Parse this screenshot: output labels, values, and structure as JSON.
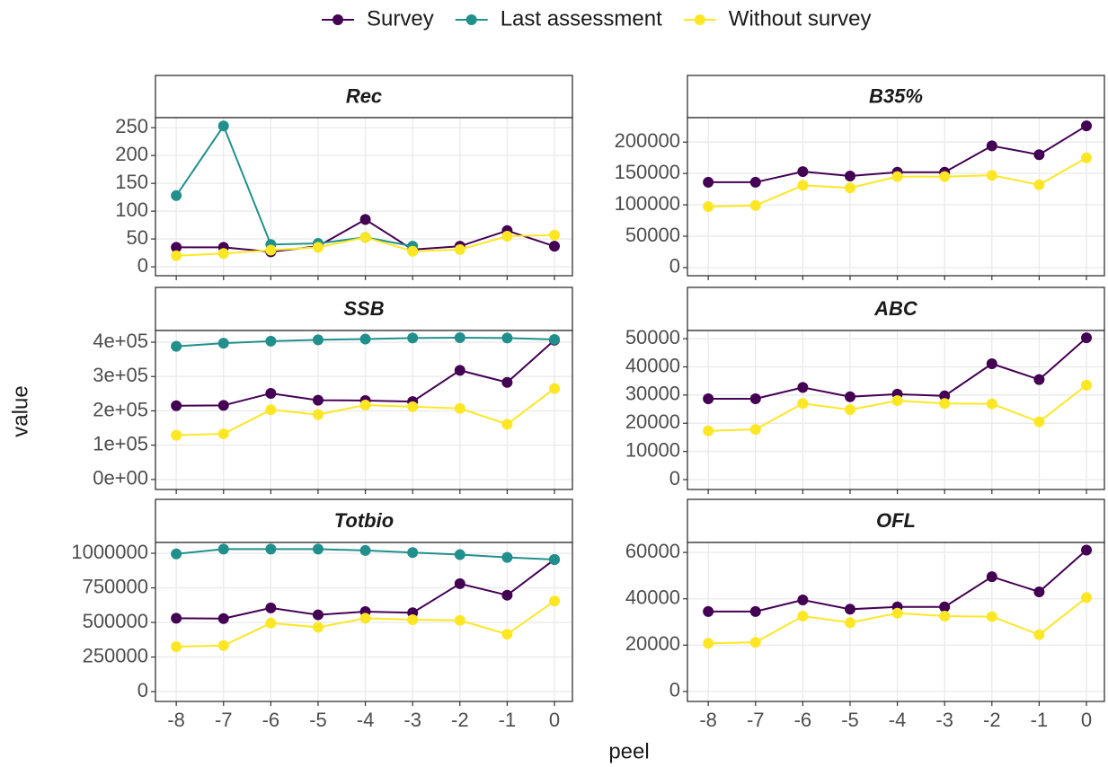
{
  "xlabel": "peel",
  "ylabel": "value",
  "chart_data": [
    {
      "type": "line",
      "title": "Rec",
      "x": [
        -8,
        -7,
        -6,
        -5,
        -4,
        -3,
        -2,
        -1,
        0
      ],
      "xlim": [
        -8.44,
        0.38
      ],
      "xticks": [
        -8,
        -7,
        -6,
        -5,
        -4,
        -3,
        -2,
        -1,
        0
      ],
      "ylim": [
        -16,
        268
      ],
      "yticks": [
        0,
        50,
        100,
        150,
        200,
        250
      ],
      "grid": true,
      "series": [
        {
          "name": "Survey",
          "color": "#440154",
          "values": [
            35,
            35,
            27,
            37,
            85,
            31,
            37,
            65,
            37
          ]
        },
        {
          "name": "Last assessment",
          "color": "#21908C",
          "values": [
            128,
            253,
            40,
            42,
            53,
            37,
            null,
            null,
            null
          ]
        },
        {
          "name": "Without survey",
          "color": "#FDE725",
          "values": [
            20,
            24,
            30,
            35,
            53,
            28,
            31,
            55,
            57
          ]
        }
      ]
    },
    {
      "type": "line",
      "title": "B35%",
      "x": [
        -8,
        -7,
        -6,
        -5,
        -4,
        -3,
        -2,
        -1,
        0
      ],
      "xlim": [
        -8.44,
        0.38
      ],
      "xticks": [
        -8,
        -7,
        -6,
        -5,
        -4,
        -3,
        -2,
        -1,
        0
      ],
      "ylim": [
        -13000,
        239000
      ],
      "yticks": [
        0,
        50000,
        100000,
        150000,
        200000
      ],
      "grid": true,
      "series": [
        {
          "name": "Survey",
          "color": "#440154",
          "values": [
            136000,
            136000,
            153000,
            146000,
            152000,
            152000,
            194000,
            180000,
            226000
          ]
        },
        {
          "name": "Without survey",
          "color": "#FDE725",
          "values": [
            97000,
            99000,
            131000,
            127000,
            145000,
            145000,
            147000,
            132000,
            175000
          ]
        }
      ]
    },
    {
      "type": "line",
      "title": "SSB",
      "x": [
        -8,
        -7,
        -6,
        -5,
        -4,
        -3,
        -2,
        -1,
        0
      ],
      "xlim": [
        -8.44,
        0.38
      ],
      "xticks": [
        -8,
        -7,
        -6,
        -5,
        -4,
        -3,
        -2,
        -1,
        0
      ],
      "ylim": [
        -29000,
        434000
      ],
      "yticks": [
        {
          "value": 0,
          "label": "0e+00"
        },
        {
          "value": 100000,
          "label": "1e+05"
        },
        {
          "value": 200000,
          "label": "2e+05"
        },
        {
          "value": 300000,
          "label": "3e+05"
        },
        {
          "value": 400000,
          "label": "4e+05"
        }
      ],
      "grid": true,
      "series": [
        {
          "name": "Survey",
          "color": "#440154",
          "values": [
            215000,
            216000,
            251000,
            231000,
            230000,
            227000,
            318000,
            283000,
            406000
          ]
        },
        {
          "name": "Last assessment",
          "color": "#21908C",
          "values": [
            388000,
            397000,
            403000,
            407000,
            409000,
            412000,
            413000,
            412000,
            408000
          ]
        },
        {
          "name": "Without survey",
          "color": "#FDE725",
          "values": [
            129000,
            133000,
            203000,
            189000,
            217000,
            212000,
            207000,
            161000,
            265000
          ]
        }
      ]
    },
    {
      "type": "line",
      "title": "ABC",
      "x": [
        -8,
        -7,
        -6,
        -5,
        -4,
        -3,
        -2,
        -1,
        0
      ],
      "xlim": [
        -8.44,
        0.38
      ],
      "xticks": [
        -8,
        -7,
        -6,
        -5,
        -4,
        -3,
        -2,
        -1,
        0
      ],
      "ylim": [
        -3500,
        52900
      ],
      "yticks": [
        0,
        10000,
        20000,
        30000,
        40000,
        50000
      ],
      "grid": true,
      "series": [
        {
          "name": "Survey",
          "color": "#440154",
          "values": [
            28700,
            28700,
            32700,
            29400,
            30300,
            29700,
            41100,
            35500,
            50300
          ]
        },
        {
          "name": "Without survey",
          "color": "#FDE725",
          "values": [
            17300,
            17800,
            27000,
            24800,
            28000,
            27000,
            26900,
            20500,
            33500
          ]
        }
      ]
    },
    {
      "type": "line",
      "title": "Totbio",
      "x": [
        -8,
        -7,
        -6,
        -5,
        -4,
        -3,
        -2,
        -1,
        0
      ],
      "xlim": [
        -8.44,
        0.38
      ],
      "xticks": [
        -8,
        -7,
        -6,
        -5,
        -4,
        -3,
        -2,
        -1,
        0
      ],
      "ylim": [
        -71000,
        1078000
      ],
      "yticks": [
        0,
        250000,
        500000,
        750000,
        1000000
      ],
      "grid": true,
      "series": [
        {
          "name": "Survey",
          "color": "#440154",
          "values": [
            530000,
            528000,
            605000,
            555000,
            578000,
            570000,
            780000,
            697000,
            955000
          ]
        },
        {
          "name": "Last assessment",
          "color": "#21908C",
          "values": [
            995000,
            1030000,
            1030000,
            1030000,
            1020000,
            1005000,
            990000,
            970000,
            955000
          ]
        },
        {
          "name": "Without survey",
          "color": "#FDE725",
          "values": [
            325000,
            333000,
            495000,
            465000,
            530000,
            520000,
            515000,
            415000,
            655000
          ]
        }
      ]
    },
    {
      "type": "line",
      "title": "OFL",
      "x": [
        -8,
        -7,
        -6,
        -5,
        -4,
        -3,
        -2,
        -1,
        0
      ],
      "xlim": [
        -8.44,
        0.38
      ],
      "xticks": [
        -8,
        -7,
        -6,
        -5,
        -4,
        -3,
        -2,
        -1,
        0
      ],
      "ylim": [
        -4300,
        64300
      ],
      "yticks": [
        0,
        20000,
        40000,
        60000
      ],
      "grid": true,
      "series": [
        {
          "name": "Survey",
          "color": "#440154",
          "values": [
            34500,
            34500,
            39500,
            35500,
            36500,
            36500,
            49500,
            43000,
            61000
          ]
        },
        {
          "name": "Without survey",
          "color": "#FDE725",
          "values": [
            20800,
            21200,
            32500,
            29700,
            33800,
            32500,
            32300,
            24500,
            40500
          ]
        }
      ]
    }
  ]
}
